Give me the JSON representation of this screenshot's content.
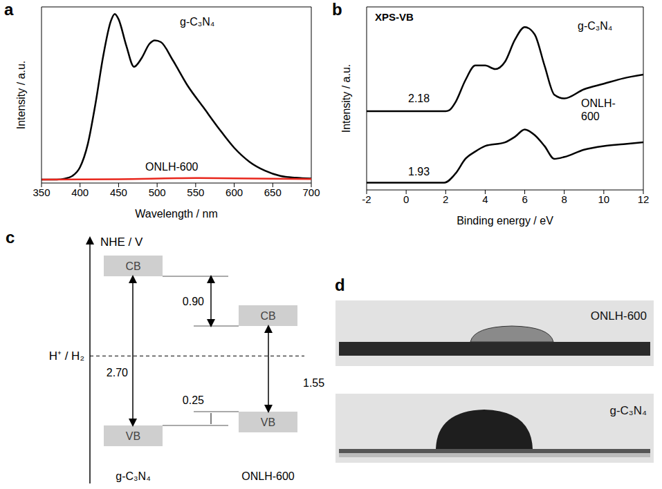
{
  "chart_data": [
    {
      "panel": "a",
      "type": "line",
      "xlabel": "Wavelength / nm",
      "ylabel": "Intensity / a.u.",
      "xlim": [
        350,
        700
      ],
      "xticks": [
        350,
        400,
        450,
        500,
        550,
        600,
        650,
        700
      ],
      "ylim": [
        0,
        100
      ],
      "tick_labels": "x",
      "series": [
        {
          "name": "g-C₃N₄",
          "color": "#000000",
          "x": [
            350,
            370,
            380,
            390,
            400,
            410,
            420,
            430,
            440,
            445,
            450,
            460,
            470,
            480,
            490,
            497,
            505,
            520,
            540,
            560,
            580,
            600,
            620,
            640,
            660,
            680,
            700
          ],
          "values": [
            2,
            2,
            2.5,
            4,
            9,
            22,
            45,
            72,
            92,
            96,
            93,
            78,
            66,
            71,
            79,
            81,
            80,
            70,
            55,
            43,
            31,
            20,
            12,
            7,
            4,
            3,
            2.5
          ]
        },
        {
          "name": "ONLH-600",
          "color": "#e8261c",
          "x": [
            350,
            450,
            550,
            600,
            700
          ],
          "values": [
            2,
            2.2,
            2.8,
            2.6,
            2.3
          ]
        }
      ]
    },
    {
      "panel": "b",
      "type": "line",
      "title": "XPS-VB",
      "xlabel": "Binding energy / eV",
      "ylabel": "Intensity / a.u.",
      "xlim": [
        -2,
        12
      ],
      "xticks": [
        -2,
        0,
        2,
        4,
        6,
        8,
        10,
        12
      ],
      "ylim": [
        0,
        100
      ],
      "tick_labels": "x",
      "series": [
        {
          "name": "g-C₃N₄",
          "color": "#000000",
          "annotation": "2.18",
          "x": [
            -2,
            2,
            2.18,
            2.5,
            3,
            3.5,
            4,
            4.5,
            5,
            5.5,
            6,
            6.5,
            7,
            7.5,
            8,
            9,
            10,
            11,
            12
          ],
          "values": [
            43,
            43,
            43.5,
            48,
            60,
            68,
            68,
            66,
            70,
            82,
            89,
            85,
            68,
            52,
            50,
            55,
            58,
            61,
            63
          ]
        },
        {
          "name": "ONLH-600",
          "color": "#000000",
          "annotation": "1.93",
          "x": [
            -2,
            1.93,
            2.5,
            3,
            3.5,
            4,
            5,
            5.5,
            6,
            6.5,
            7,
            7.5,
            8,
            9,
            10,
            11,
            12
          ],
          "values": [
            4,
            4,
            9,
            17,
            21,
            24,
            26,
            29,
            33,
            30,
            24,
            17,
            18,
            22,
            24,
            25,
            26
          ]
        }
      ]
    }
  ],
  "band_diagram": {
    "panel": "c",
    "axis_label": "NHE / V",
    "reference_label": "H⁺ / H₂",
    "materials": [
      {
        "name": "g-C₃N₄",
        "cb_label": "CB",
        "vb_label": "VB",
        "band_gap": {
          "value": 2.7,
          "label": "2.70"
        }
      },
      {
        "name": "ONLH-600",
        "cb_label": "CB",
        "vb_label": "VB",
        "band_gap": {
          "value": 1.55,
          "label": "1.55"
        }
      }
    ],
    "cb_offset": {
      "value": 0.9,
      "label": "0.90"
    },
    "vb_offset": {
      "value": 0.25,
      "label": "0.25"
    }
  },
  "photos": {
    "panel": "d",
    "images": [
      {
        "label": "ONLH-600"
      },
      {
        "label": "g-C₃N₄"
      }
    ]
  }
}
